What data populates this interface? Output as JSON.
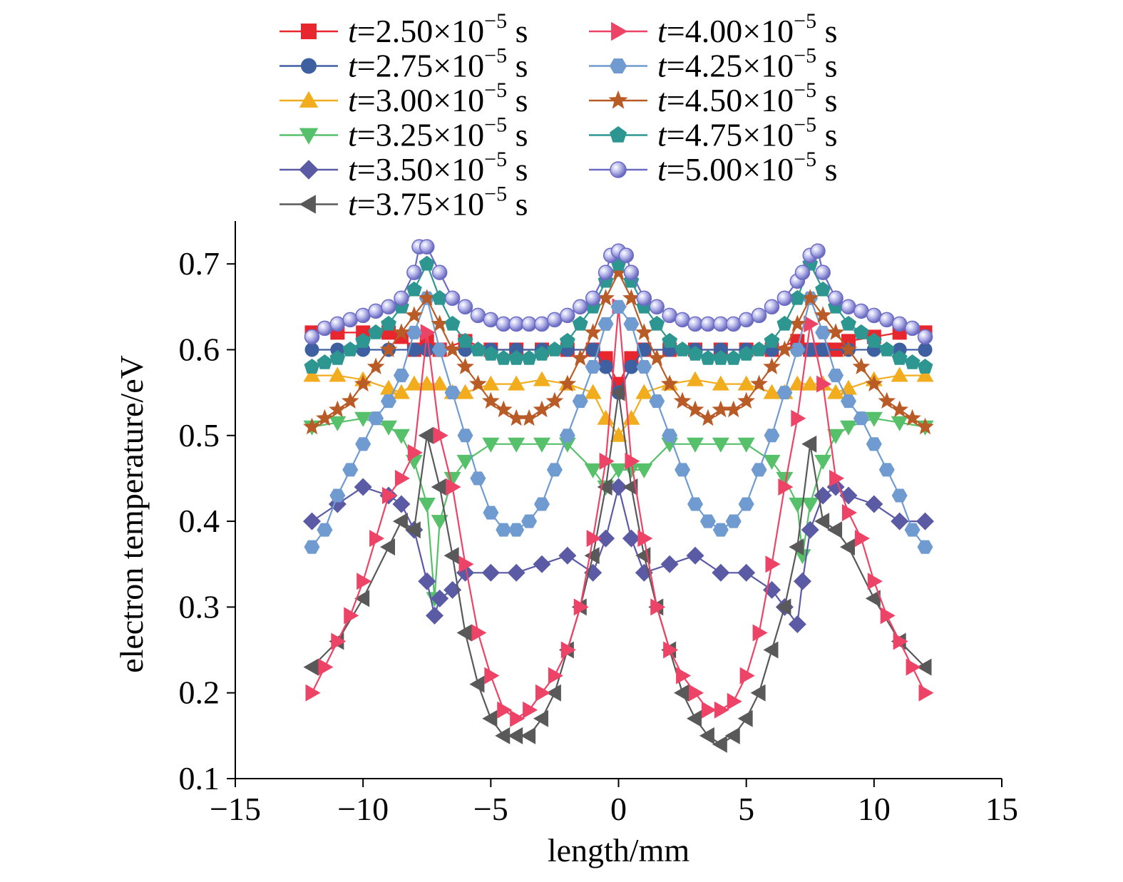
{
  "chart_data": {
    "type": "line",
    "xlabel": "length/mm",
    "ylabel": "electron temperature/eV",
    "xlim": [
      -15,
      15
    ],
    "ylim": [
      0.1,
      0.75
    ],
    "xticks": [
      -15,
      -10,
      -5,
      0,
      5,
      10,
      15
    ],
    "xtick_labels": [
      "−15",
      "−10",
      "−5",
      "0",
      "5",
      "10",
      "15"
    ],
    "yticks": [
      0.1,
      0.2,
      0.3,
      0.4,
      0.5,
      0.6,
      0.7
    ],
    "ytick_labels": [
      "0.1",
      "0.2",
      "0.3",
      "0.4",
      "0.5",
      "0.6",
      "0.7"
    ],
    "grid": false,
    "legend_position": "top",
    "series": [
      {
        "name": "t=2.50×10⁻⁵ s",
        "t_var": "t",
        "t_rest": "=2.50×10",
        "t_exp": "−5",
        "t_unit": " s",
        "color": "#e8262d",
        "marker": "square",
        "x": [
          -12,
          -11,
          -10,
          -9,
          -8.5,
          -8,
          -7.5,
          -7,
          -6,
          -5,
          -4,
          -3,
          -2,
          -1,
          -0.5,
          0,
          0.5,
          1,
          2,
          3,
          4,
          5,
          6,
          7,
          7.5,
          8,
          8.5,
          9,
          10,
          11,
          12
        ],
        "y": [
          0.62,
          0.62,
          0.62,
          0.62,
          0.615,
          0.6,
          0.61,
          0.6,
          0.61,
          0.6,
          0.6,
          0.6,
          0.6,
          0.6,
          0.59,
          0.56,
          0.59,
          0.6,
          0.6,
          0.6,
          0.6,
          0.6,
          0.6,
          0.61,
          0.6,
          0.6,
          0.6,
          0.61,
          0.615,
          0.62,
          0.62
        ]
      },
      {
        "name": "t=2.75×10⁻⁵ s",
        "t_var": "t",
        "t_rest": "=2.75×10",
        "t_exp": "−5",
        "t_unit": " s",
        "color": "#3e5fa0",
        "marker": "circle",
        "x": [
          -12,
          -11,
          -10,
          -9,
          -8,
          -7.5,
          -7,
          -6,
          -5,
          -4,
          -3,
          -2,
          -1,
          -0.5,
          0,
          0.5,
          1,
          2,
          3,
          4,
          5,
          6,
          7,
          7.5,
          8,
          9,
          10,
          11,
          12
        ],
        "y": [
          0.6,
          0.6,
          0.6,
          0.6,
          0.6,
          0.6,
          0.6,
          0.6,
          0.6,
          0.6,
          0.6,
          0.6,
          0.6,
          0.58,
          0.55,
          0.58,
          0.6,
          0.6,
          0.6,
          0.6,
          0.6,
          0.6,
          0.6,
          0.6,
          0.6,
          0.6,
          0.6,
          0.6,
          0.6
        ]
      },
      {
        "name": "t=3.00×10⁻⁵ s",
        "t_var": "t",
        "t_rest": "=3.00×10",
        "t_exp": "−5",
        "t_unit": " s",
        "color": "#f2ad1f",
        "marker": "triangle-up",
        "x": [
          -12,
          -11,
          -10,
          -9,
          -8.5,
          -8,
          -7.5,
          -7,
          -6.5,
          -6,
          -5,
          -4,
          -3,
          -2,
          -1,
          -0.5,
          0,
          0.5,
          1,
          2,
          3,
          4,
          5,
          6,
          6.5,
          7,
          7.5,
          8,
          8.5,
          9,
          10,
          11,
          12
        ],
        "y": [
          0.57,
          0.57,
          0.565,
          0.555,
          0.55,
          0.56,
          0.56,
          0.56,
          0.55,
          0.55,
          0.56,
          0.56,
          0.565,
          0.56,
          0.55,
          0.52,
          0.5,
          0.52,
          0.55,
          0.56,
          0.565,
          0.56,
          0.56,
          0.55,
          0.55,
          0.56,
          0.56,
          0.56,
          0.55,
          0.555,
          0.565,
          0.57,
          0.57
        ]
      },
      {
        "name": "t=3.25×10⁻⁵ s",
        "t_var": "t",
        "t_rest": "=3.25×10",
        "t_exp": "−5",
        "t_unit": " s",
        "color": "#56c16a",
        "marker": "triangle-down",
        "x": [
          -12,
          -11,
          -10,
          -9,
          -8.5,
          -8,
          -7.5,
          -7.2,
          -7,
          -6.5,
          -6,
          -5,
          -4,
          -3,
          -2,
          -1,
          -0.5,
          0,
          0.5,
          1,
          2,
          3,
          4,
          5,
          6,
          6.5,
          7,
          7.2,
          7.5,
          8,
          8.5,
          9,
          10,
          11,
          12
        ],
        "y": [
          0.51,
          0.515,
          0.52,
          0.51,
          0.5,
          0.47,
          0.42,
          0.31,
          0.4,
          0.45,
          0.47,
          0.49,
          0.49,
          0.49,
          0.49,
          0.46,
          0.44,
          0.46,
          0.46,
          0.46,
          0.49,
          0.49,
          0.49,
          0.49,
          0.47,
          0.45,
          0.42,
          0.36,
          0.42,
          0.47,
          0.5,
          0.51,
          0.52,
          0.515,
          0.51
        ]
      },
      {
        "name": "t=3.50×10⁻⁵ s",
        "t_var": "t",
        "t_rest": "=3.50×10",
        "t_exp": "−5",
        "t_unit": " s",
        "color": "#5a5aa5",
        "marker": "diamond",
        "x": [
          -12,
          -11,
          -10,
          -9,
          -8.5,
          -8,
          -7.5,
          -7.2,
          -7,
          -6.5,
          -6,
          -5,
          -4,
          -3,
          -2,
          -1,
          -0.5,
          0,
          0.5,
          1,
          2,
          3,
          4,
          5,
          6,
          6.5,
          7,
          7.2,
          7.5,
          8,
          8.5,
          9,
          10,
          11,
          12
        ],
        "y": [
          0.4,
          0.42,
          0.44,
          0.43,
          0.42,
          0.39,
          0.33,
          0.29,
          0.31,
          0.32,
          0.34,
          0.34,
          0.34,
          0.35,
          0.36,
          0.34,
          0.38,
          0.44,
          0.38,
          0.34,
          0.35,
          0.36,
          0.34,
          0.34,
          0.32,
          0.3,
          0.28,
          0.33,
          0.39,
          0.43,
          0.44,
          0.43,
          0.42,
          0.4,
          0.4
        ]
      },
      {
        "name": "t=3.75×10⁻⁵ s",
        "t_var": "t",
        "t_rest": "=3.75×10",
        "t_exp": "−5",
        "t_unit": " s",
        "color": "#595959",
        "marker": "triangle-left",
        "x": [
          -12,
          -11,
          -10,
          -9,
          -8.5,
          -8,
          -7.5,
          -7,
          -6.5,
          -6,
          -5.5,
          -5,
          -4.5,
          -4,
          -3.5,
          -3,
          -2.5,
          -2,
          -1.5,
          -1,
          -0.5,
          0,
          0.5,
          1,
          1.5,
          2,
          2.5,
          3,
          3.5,
          4,
          4.5,
          5,
          5.5,
          6,
          6.5,
          7,
          7.5,
          8,
          8.5,
          9,
          10,
          11,
          12
        ],
        "y": [
          0.23,
          0.26,
          0.31,
          0.37,
          0.4,
          0.39,
          0.5,
          0.44,
          0.36,
          0.27,
          0.21,
          0.17,
          0.15,
          0.15,
          0.15,
          0.17,
          0.2,
          0.25,
          0.3,
          0.36,
          0.44,
          0.55,
          0.44,
          0.36,
          0.3,
          0.25,
          0.2,
          0.17,
          0.15,
          0.14,
          0.15,
          0.17,
          0.2,
          0.25,
          0.3,
          0.37,
          0.49,
          0.4,
          0.39,
          0.37,
          0.31,
          0.26,
          0.23
        ]
      },
      {
        "name": "t=4.00×10⁻⁵ s",
        "t_var": "t",
        "t_rest": "=4.00×10",
        "t_exp": "−5",
        "t_unit": " s",
        "color": "#ec4366",
        "marker": "triangle-right",
        "x": [
          -12,
          -11.5,
          -11,
          -10.5,
          -10,
          -9.5,
          -9,
          -8.5,
          -8,
          -7.5,
          -7,
          -6.5,
          -6,
          -5.5,
          -5,
          -4.5,
          -4,
          -3.5,
          -3,
          -2.5,
          -2,
          -1.5,
          -1,
          -0.5,
          0,
          0.5,
          1,
          1.5,
          2,
          2.5,
          3,
          3.5,
          4,
          4.5,
          5,
          5.5,
          6,
          6.5,
          7,
          7.5,
          8,
          8.5,
          9,
          9.5,
          10,
          10.5,
          11,
          11.5,
          12
        ],
        "y": [
          0.2,
          0.23,
          0.26,
          0.29,
          0.33,
          0.38,
          0.43,
          0.45,
          0.48,
          0.62,
          0.5,
          0.44,
          0.35,
          0.27,
          0.22,
          0.18,
          0.17,
          0.18,
          0.2,
          0.22,
          0.25,
          0.3,
          0.38,
          0.47,
          0.65,
          0.47,
          0.38,
          0.3,
          0.25,
          0.22,
          0.2,
          0.18,
          0.18,
          0.19,
          0.22,
          0.27,
          0.35,
          0.44,
          0.52,
          0.63,
          0.56,
          0.45,
          0.41,
          0.38,
          0.33,
          0.29,
          0.26,
          0.23,
          0.2
        ]
      },
      {
        "name": "t=4.25×10⁻⁵ s",
        "t_var": "t",
        "t_rest": "=4.25×10",
        "t_exp": "−5",
        "t_unit": " s",
        "color": "#6f9bd0",
        "marker": "hexagon",
        "x": [
          -12,
          -11.5,
          -11,
          -10.5,
          -10,
          -9.5,
          -9,
          -8.5,
          -8,
          -7.5,
          -7,
          -6.5,
          -6,
          -5.5,
          -5,
          -4.5,
          -4,
          -3.5,
          -3,
          -2.5,
          -2,
          -1.5,
          -1,
          -0.5,
          0,
          0.5,
          1,
          1.5,
          2,
          2.5,
          3,
          3.5,
          4,
          4.5,
          5,
          5.5,
          6,
          6.5,
          7,
          7.5,
          8,
          8.5,
          9,
          9.5,
          10,
          10.5,
          11,
          11.5,
          12
        ],
        "y": [
          0.37,
          0.39,
          0.43,
          0.46,
          0.49,
          0.52,
          0.54,
          0.57,
          0.62,
          0.66,
          0.6,
          0.55,
          0.5,
          0.45,
          0.41,
          0.39,
          0.39,
          0.4,
          0.42,
          0.46,
          0.5,
          0.54,
          0.58,
          0.63,
          0.65,
          0.63,
          0.58,
          0.54,
          0.5,
          0.46,
          0.42,
          0.4,
          0.39,
          0.4,
          0.42,
          0.46,
          0.5,
          0.55,
          0.6,
          0.66,
          0.62,
          0.57,
          0.54,
          0.52,
          0.49,
          0.46,
          0.43,
          0.39,
          0.37
        ]
      },
      {
        "name": "t=4.50×10⁻⁵ s",
        "t_var": "t",
        "t_rest": "=4.50×10",
        "t_exp": "−5",
        "t_unit": " s",
        "color": "#b95b26",
        "marker": "star",
        "x": [
          -12,
          -11.5,
          -11,
          -10.5,
          -10,
          -9.5,
          -9,
          -8.5,
          -8,
          -7.5,
          -7,
          -6.5,
          -6,
          -5.5,
          -5,
          -4.5,
          -4,
          -3.5,
          -3,
          -2.5,
          -2,
          -1.5,
          -1,
          -0.5,
          0,
          0.5,
          1,
          1.5,
          2,
          2.5,
          3,
          3.5,
          4,
          4.5,
          5,
          5.5,
          6,
          6.5,
          7,
          7.5,
          8,
          8.5,
          9,
          9.5,
          10,
          10.5,
          11,
          11.5,
          12
        ],
        "y": [
          0.51,
          0.52,
          0.53,
          0.54,
          0.56,
          0.58,
          0.6,
          0.62,
          0.64,
          0.66,
          0.63,
          0.6,
          0.58,
          0.56,
          0.54,
          0.53,
          0.52,
          0.52,
          0.53,
          0.54,
          0.56,
          0.59,
          0.62,
          0.66,
          0.69,
          0.66,
          0.62,
          0.59,
          0.56,
          0.54,
          0.53,
          0.52,
          0.53,
          0.53,
          0.54,
          0.56,
          0.58,
          0.6,
          0.63,
          0.66,
          0.64,
          0.62,
          0.6,
          0.58,
          0.56,
          0.54,
          0.53,
          0.52,
          0.51
        ]
      },
      {
        "name": "t=4.75×10⁻⁵ s",
        "t_var": "t",
        "t_rest": "=4.75×10",
        "t_exp": "−5",
        "t_unit": " s",
        "color": "#2e9690",
        "marker": "pentagon",
        "x": [
          -12,
          -11.5,
          -11,
          -10.5,
          -10,
          -9.5,
          -9,
          -8.5,
          -8,
          -7.5,
          -7,
          -6.5,
          -6,
          -5.5,
          -5,
          -4.5,
          -4,
          -3.5,
          -3,
          -2.5,
          -2,
          -1.5,
          -1,
          -0.5,
          0,
          0.5,
          1,
          1.5,
          2,
          2.5,
          3,
          3.5,
          4,
          4.5,
          5,
          5.5,
          6,
          6.5,
          7,
          7.5,
          8,
          8.5,
          9,
          9.5,
          10,
          10.5,
          11,
          11.5,
          12
        ],
        "y": [
          0.58,
          0.585,
          0.59,
          0.6,
          0.61,
          0.62,
          0.63,
          0.65,
          0.67,
          0.7,
          0.66,
          0.63,
          0.61,
          0.6,
          0.595,
          0.59,
          0.59,
          0.59,
          0.595,
          0.6,
          0.61,
          0.63,
          0.65,
          0.68,
          0.7,
          0.68,
          0.65,
          0.63,
          0.61,
          0.6,
          0.595,
          0.59,
          0.59,
          0.59,
          0.595,
          0.6,
          0.61,
          0.63,
          0.66,
          0.7,
          0.67,
          0.65,
          0.63,
          0.62,
          0.61,
          0.6,
          0.59,
          0.585,
          0.58
        ]
      },
      {
        "name": "t=5.00×10⁻⁵ s",
        "t_var": "t",
        "t_rest": "=5.00×10",
        "t_exp": "−5",
        "t_unit": " s",
        "color": "#6b6bc4",
        "marker": "sphere",
        "x": [
          -12,
          -11.5,
          -11,
          -10.5,
          -10,
          -9.5,
          -9,
          -8.5,
          -8,
          -7.8,
          -7.5,
          -7,
          -6.5,
          -6,
          -5.5,
          -5,
          -4.5,
          -4,
          -3.5,
          -3,
          -2.5,
          -2,
          -1.5,
          -1,
          -0.5,
          -0.3,
          0,
          0.3,
          0.5,
          1,
          1.5,
          2,
          2.5,
          3,
          3.5,
          4,
          4.5,
          5,
          5.5,
          6,
          6.5,
          7,
          7.2,
          7.5,
          7.8,
          8,
          8.5,
          9,
          9.5,
          10,
          10.5,
          11,
          11.5,
          12
        ],
        "y": [
          0.615,
          0.625,
          0.63,
          0.635,
          0.64,
          0.645,
          0.65,
          0.66,
          0.69,
          0.72,
          0.72,
          0.69,
          0.66,
          0.65,
          0.64,
          0.635,
          0.63,
          0.63,
          0.63,
          0.63,
          0.635,
          0.64,
          0.65,
          0.66,
          0.69,
          0.71,
          0.715,
          0.71,
          0.69,
          0.66,
          0.65,
          0.64,
          0.635,
          0.63,
          0.63,
          0.63,
          0.63,
          0.635,
          0.64,
          0.65,
          0.66,
          0.68,
          0.69,
          0.71,
          0.715,
          0.69,
          0.66,
          0.65,
          0.645,
          0.64,
          0.635,
          0.63,
          0.625,
          0.615
        ]
      }
    ]
  }
}
